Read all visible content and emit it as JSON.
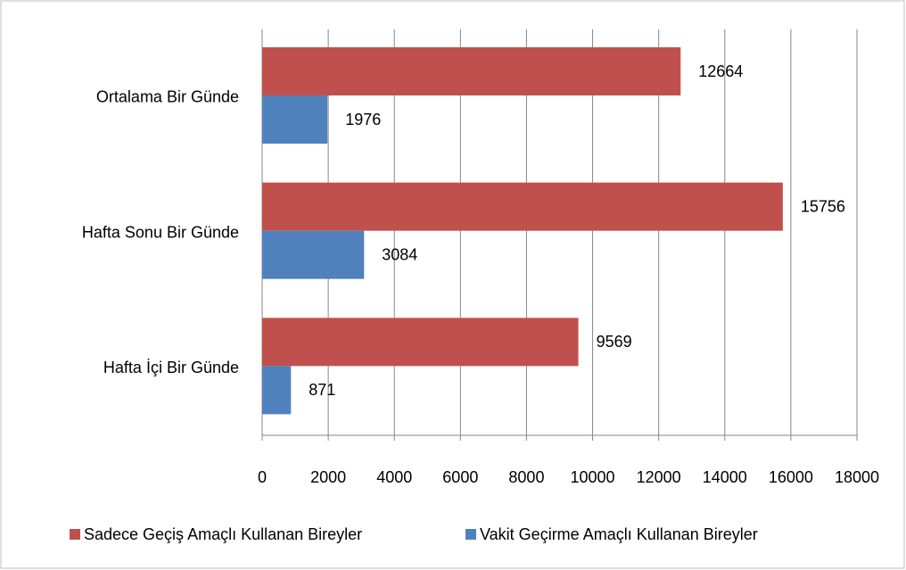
{
  "chart_data": {
    "type": "hbar",
    "categories": [
      "Ortalama Bir Günde",
      "Hafta Sonu Bir Günde",
      "Hafta İçi Bir Günde"
    ],
    "series": [
      {
        "name": "Sadece Geçiş Amaçlı Kullanan Bireyler",
        "color": "#c0504d",
        "values": [
          12664,
          15756,
          9569
        ]
      },
      {
        "name": "Vakit Geçirme Amaçlı Kullanan Bireyler",
        "color": "#4f81bd",
        "values": [
          1976,
          3084,
          871
        ]
      }
    ],
    "xlim": [
      0,
      18000
    ],
    "xticks": [
      0,
      2000,
      4000,
      6000,
      8000,
      10000,
      12000,
      14000,
      16000,
      18000
    ],
    "grid": true,
    "legend": "bottom"
  }
}
